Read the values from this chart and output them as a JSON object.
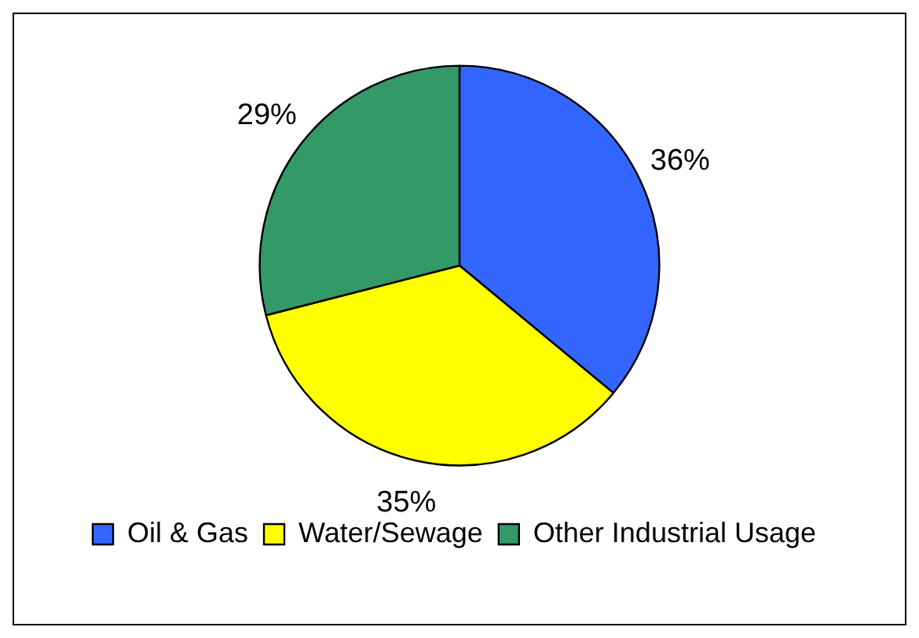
{
  "chart_data": {
    "type": "pie",
    "categories": [
      "Oil & Gas",
      "Water/Sewage",
      "Other Industrial Usage"
    ],
    "values": [
      36,
      35,
      29
    ],
    "colors": [
      "#3366ff",
      "#ffff00",
      "#339966"
    ],
    "value_labels": [
      "36%",
      "35%",
      "29%"
    ],
    "legend": "bottom"
  }
}
